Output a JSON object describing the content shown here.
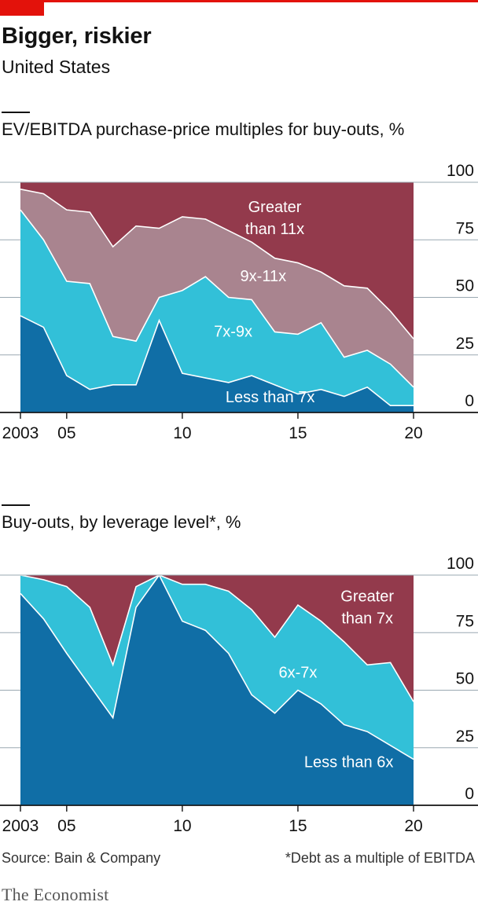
{
  "header": {
    "title": "Bigger, riskier",
    "subtitle": "United States"
  },
  "footer": {
    "source": "Source: Bain & Company",
    "note": "*Debt as a multiple of EBITDA",
    "brand": "The Economist"
  },
  "colors": {
    "accent": "#e3120b",
    "dark_blue": "#106ea6",
    "light_blue": "#32c0d8",
    "mauve": "#a9848f",
    "maroon": "#933a4c",
    "grid": "#9aa8b2"
  },
  "chart_data": [
    {
      "type": "area",
      "title": "EV/EBITDA purchase-price multiples for buy-outs, %",
      "x": [
        2003,
        2004,
        2005,
        2006,
        2007,
        2008,
        2009,
        2010,
        2011,
        2012,
        2013,
        2014,
        2015,
        2016,
        2017,
        2018,
        2019,
        2020
      ],
      "x_ticks": [
        2003,
        2005,
        2010,
        2015,
        2020
      ],
      "x_tick_labels": [
        "2003",
        "05",
        "10",
        "15",
        "20"
      ],
      "ylim": [
        0,
        100
      ],
      "y_ticks": [
        0,
        25,
        50,
        75,
        100
      ],
      "stacked_cumulative": true,
      "series": [
        {
          "name": "Less than 7x",
          "values": [
            42,
            37,
            16,
            10,
            12,
            12,
            40,
            17,
            15,
            13,
            16,
            12,
            8,
            10,
            7,
            11,
            3,
            3
          ]
        },
        {
          "name": "7x-9x",
          "values": [
            88,
            75,
            57,
            56,
            33,
            31,
            50,
            53,
            59,
            50,
            49,
            35,
            34,
            39,
            24,
            27,
            21,
            11
          ]
        },
        {
          "name": "9x-11x",
          "values": [
            97,
            95,
            88,
            87,
            72,
            81,
            80,
            85,
            84,
            79,
            74,
            67,
            65,
            61,
            55,
            54,
            44,
            32
          ]
        },
        {
          "name": "Greater than 11x",
          "values": [
            100,
            100,
            100,
            100,
            100,
            100,
            100,
            100,
            100,
            100,
            100,
            100,
            100,
            100,
            100,
            100,
            100,
            100
          ]
        }
      ],
      "labels": {
        "s0": "Less than 7x",
        "s1": "7x-9x",
        "s2": "9x-11x",
        "s3a": "Greater",
        "s3b": "than 11x"
      }
    },
    {
      "type": "area",
      "title": "Buy-outs, by leverage level*, %",
      "x": [
        2003,
        2004,
        2005,
        2006,
        2007,
        2008,
        2009,
        2010,
        2011,
        2012,
        2013,
        2014,
        2015,
        2016,
        2017,
        2018,
        2019,
        2020
      ],
      "x_ticks": [
        2003,
        2005,
        2010,
        2015,
        2020
      ],
      "x_tick_labels": [
        "2003",
        "05",
        "10",
        "15",
        "20"
      ],
      "ylim": [
        0,
        100
      ],
      "y_ticks": [
        0,
        25,
        50,
        75,
        100
      ],
      "stacked_cumulative": true,
      "series": [
        {
          "name": "Less than 6x",
          "values": [
            92,
            81,
            66,
            52,
            38,
            86,
            100,
            80,
            76,
            66,
            48,
            40,
            50,
            44,
            35,
            32,
            26,
            20
          ]
        },
        {
          "name": "6x-7x",
          "values": [
            100,
            98,
            95,
            86,
            61,
            95,
            100,
            96,
            96,
            93,
            85,
            73,
            87,
            80,
            71,
            61,
            62,
            45
          ]
        },
        {
          "name": "Greater than 7x",
          "values": [
            100,
            100,
            100,
            100,
            100,
            100,
            100,
            100,
            100,
            100,
            100,
            100,
            100,
            100,
            100,
            100,
            100,
            100
          ]
        }
      ],
      "labels": {
        "s0": "Less than 6x",
        "s1": "6x-7x",
        "s2a": "Greater",
        "s2b": "than 7x"
      }
    }
  ]
}
